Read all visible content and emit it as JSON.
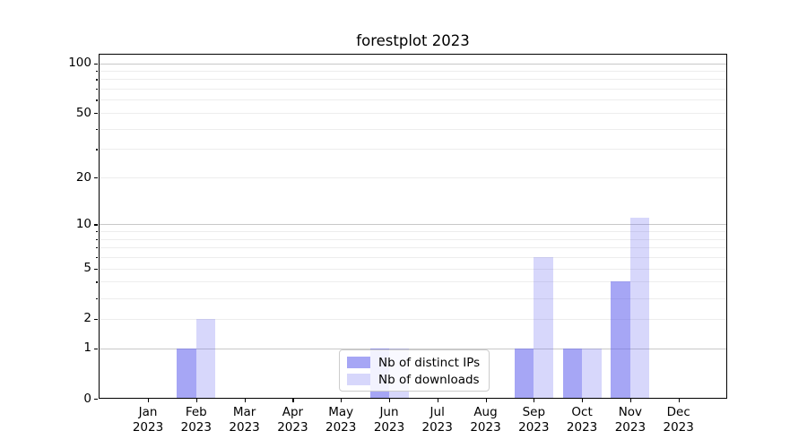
{
  "chart_data": {
    "type": "bar",
    "title": "forestplot 2023",
    "year_label": "2023",
    "categories": [
      "Jan",
      "Feb",
      "Mar",
      "Apr",
      "May",
      "Jun",
      "Jul",
      "Aug",
      "Sep",
      "Oct",
      "Nov",
      "Dec"
    ],
    "series": [
      {
        "name": "Nb of distinct IPs",
        "color": "rgba(102,102,238,0.58)",
        "values": [
          0,
          1,
          0,
          0,
          0,
          1,
          0,
          0,
          1,
          1,
          4,
          0
        ]
      },
      {
        "name": "Nb of downloads",
        "color": "rgba(102,102,238,0.26)",
        "values": [
          0,
          2,
          0,
          0,
          0,
          1,
          0,
          0,
          6,
          1,
          11,
          0
        ]
      }
    ],
    "yscale": "log10(1+y)",
    "ylim": [
      0,
      114
    ],
    "yticks_labeled": [
      0,
      1,
      2,
      5,
      10,
      20,
      50,
      100
    ],
    "ygrid_major": [
      1,
      10,
      100
    ],
    "ygrid_minor": [
      2,
      3,
      4,
      5,
      6,
      7,
      8,
      9,
      20,
      30,
      40,
      50,
      60,
      70,
      80,
      90
    ],
    "legend_position": "lower center",
    "grid": true,
    "colors": {
      "major_grid": "#c8c8c8",
      "minor_grid": "#ededed",
      "spine": "#000000",
      "text": "#000000"
    }
  }
}
